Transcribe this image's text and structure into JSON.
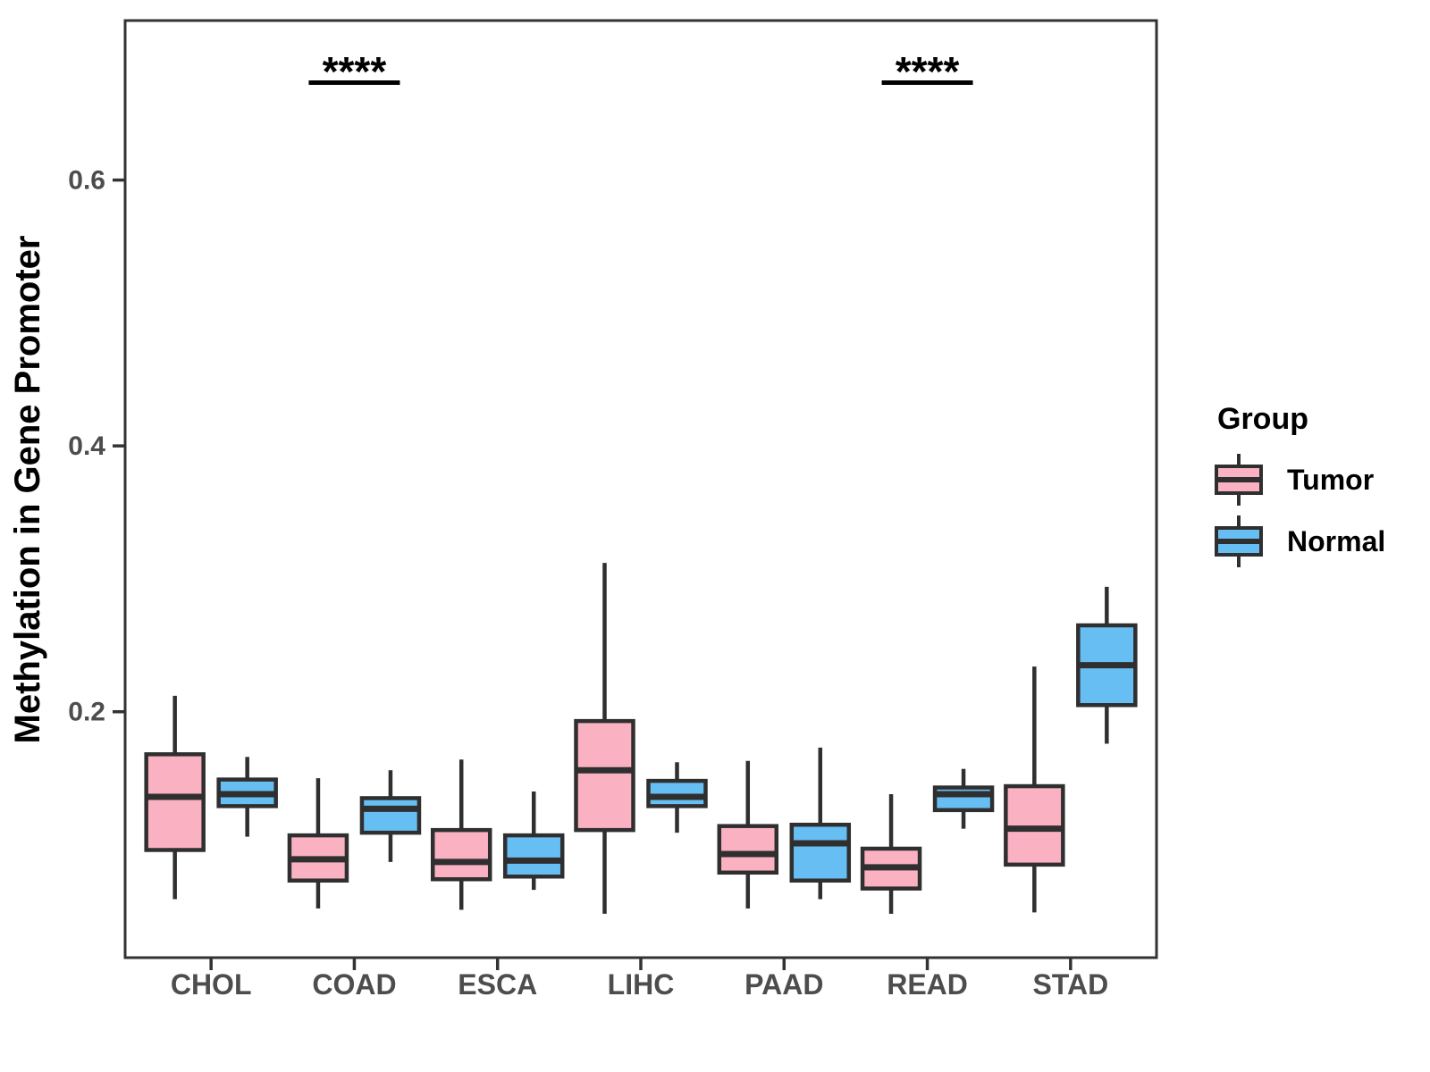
{
  "figure": {
    "background": "#ffffff",
    "legend": {
      "title": "Group",
      "items": [
        {
          "label": "Tumor",
          "color": "#FAB1C2"
        },
        {
          "label": "Normal",
          "color": "#67BEF3"
        }
      ]
    }
  },
  "style": {
    "axis_color": "#333333",
    "box_border_color": "#2f2f2f",
    "tick_label_color": "#4d4d4d",
    "text_color": "#000000"
  },
  "chart_data": {
    "type": "grouped_boxplot",
    "title": "",
    "xlabel": "",
    "ylabel": "Methylation in Gene Promoter",
    "categories": [
      "CHOL",
      "COAD",
      "ESCA",
      "LIHC",
      "PAAD",
      "READ",
      "STAD"
    ],
    "ylim": [
      0.015,
      0.72
    ],
    "yticks": [
      0.2,
      0.4,
      0.6
    ],
    "grid": false,
    "legend_position": "right",
    "series": [
      {
        "name": "Tumor",
        "color": "#FAB1C2",
        "boxes": [
          {
            "category": "CHOL",
            "whisker_low": 0.059,
            "q1": 0.096,
            "median": 0.136,
            "q3": 0.168,
            "whisker_high": 0.212
          },
          {
            "category": "COAD",
            "whisker_low": 0.052,
            "q1": 0.073,
            "median": 0.089,
            "q3": 0.107,
            "whisker_high": 0.15
          },
          {
            "category": "ESCA",
            "whisker_low": 0.051,
            "q1": 0.074,
            "median": 0.087,
            "q3": 0.111,
            "whisker_high": 0.164
          },
          {
            "category": "LIHC",
            "whisker_low": 0.048,
            "q1": 0.111,
            "median": 0.156,
            "q3": 0.193,
            "whisker_high": 0.312
          },
          {
            "category": "PAAD",
            "whisker_low": 0.052,
            "q1": 0.079,
            "median": 0.093,
            "q3": 0.114,
            "whisker_high": 0.163
          },
          {
            "category": "READ",
            "whisker_low": 0.048,
            "q1": 0.067,
            "median": 0.083,
            "q3": 0.097,
            "whisker_high": 0.138
          },
          {
            "category": "STAD",
            "whisker_low": 0.049,
            "q1": 0.085,
            "median": 0.112,
            "q3": 0.144,
            "whisker_high": 0.234
          }
        ]
      },
      {
        "name": "Normal",
        "color": "#67BEF3",
        "boxes": [
          {
            "category": "CHOL",
            "whisker_low": 0.106,
            "q1": 0.129,
            "median": 0.138,
            "q3": 0.149,
            "whisker_high": 0.166
          },
          {
            "category": "COAD",
            "whisker_low": 0.087,
            "q1": 0.109,
            "median": 0.127,
            "q3": 0.135,
            "whisker_high": 0.156
          },
          {
            "category": "ESCA",
            "whisker_low": 0.066,
            "q1": 0.076,
            "median": 0.088,
            "q3": 0.107,
            "whisker_high": 0.14
          },
          {
            "category": "LIHC",
            "whisker_low": 0.109,
            "q1": 0.129,
            "median": 0.136,
            "q3": 0.148,
            "whisker_high": 0.162
          },
          {
            "category": "PAAD",
            "whisker_low": 0.059,
            "q1": 0.073,
            "median": 0.101,
            "q3": 0.115,
            "whisker_high": 0.173
          },
          {
            "category": "READ",
            "whisker_low": 0.112,
            "q1": 0.126,
            "median": 0.138,
            "q3": 0.143,
            "whisker_high": 0.157
          },
          {
            "category": "STAD",
            "whisker_low": 0.176,
            "q1": 0.205,
            "median": 0.235,
            "q3": 0.265,
            "whisker_high": 0.294
          }
        ]
      }
    ],
    "annotations": [
      {
        "label": "****",
        "category": "COAD"
      },
      {
        "label": "****",
        "category": "READ"
      }
    ]
  }
}
